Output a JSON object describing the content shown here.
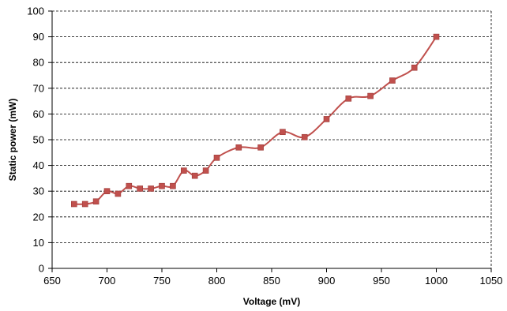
{
  "chart_data": {
    "type": "line",
    "xlabel": "Voltage (mV)",
    "ylabel": "Static power (mW)",
    "xlim": [
      650,
      1050
    ],
    "ylim": [
      0,
      100
    ],
    "xticks": [
      650,
      700,
      750,
      800,
      850,
      900,
      950,
      1000,
      1050
    ],
    "yticks": [
      0,
      10,
      20,
      30,
      40,
      50,
      60,
      70,
      80,
      90,
      100
    ],
    "grid": "horizontal-dashed",
    "series": [
      {
        "color": "#c0504d",
        "marker": "square",
        "x": [
          670,
          680,
          690,
          700,
          710,
          720,
          730,
          740,
          750,
          760,
          770,
          780,
          790,
          800,
          820,
          840,
          860,
          880,
          900,
          920,
          940,
          960,
          980,
          1000
        ],
        "y": [
          25,
          25,
          26,
          30,
          29,
          32,
          31,
          31,
          32,
          32,
          38,
          36,
          38,
          43,
          47,
          47,
          53,
          51,
          58,
          66,
          67,
          73,
          78,
          90
        ]
      }
    ]
  }
}
